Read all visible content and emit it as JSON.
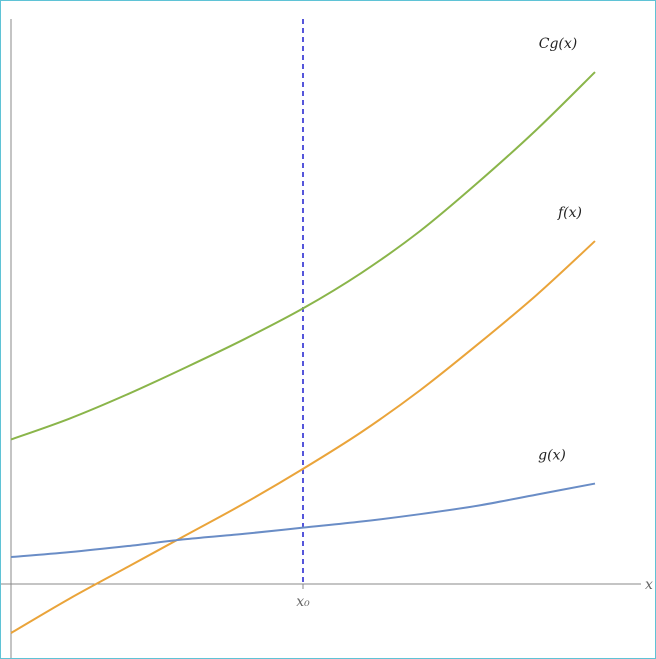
{
  "chart_data": {
    "type": "line",
    "x": [
      0,
      0.1,
      0.2,
      0.3,
      0.4,
      0.5,
      0.6,
      0.7,
      0.8,
      0.9,
      1.0
    ],
    "series": [
      {
        "name": "Cg(x)",
        "color": "#8ab54a",
        "values": [
          0.59,
          0.675,
          0.775,
          0.885,
          1.0,
          1.125,
          1.27,
          1.44,
          1.64,
          1.855,
          2.09
        ]
      },
      {
        "name": "f(x)",
        "color": "#eaa43a",
        "values": [
          -0.2,
          -0.06,
          0.07,
          0.2,
          0.33,
          0.47,
          0.62,
          0.79,
          0.98,
          1.18,
          1.4
        ]
      },
      {
        "name": "g(x)",
        "color": "#6a8dc6",
        "values": [
          0.11,
          0.13,
          0.155,
          0.183,
          0.205,
          0.23,
          0.255,
          0.285,
          0.32,
          0.365,
          0.41
        ]
      }
    ],
    "reference_line": {
      "x": 0.5,
      "label": "x0",
      "color": "#1f1fcf",
      "style": "dashed"
    },
    "xlabel": "x",
    "ylabel": "",
    "xlim": [
      0,
      1
    ],
    "ylim": [
      -0.2,
      2.38
    ],
    "grid": false,
    "legend": "none"
  }
}
